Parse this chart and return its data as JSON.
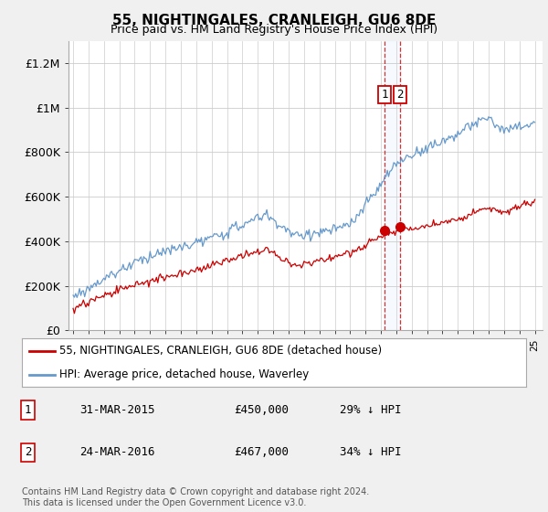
{
  "title": "55, NIGHTINGALES, CRANLEIGH, GU6 8DE",
  "subtitle": "Price paid vs. HM Land Registry's House Price Index (HPI)",
  "ylabel_ticks": [
    "£0",
    "£200K",
    "£400K",
    "£600K",
    "£800K",
    "£1M",
    "£1.2M"
  ],
  "ytick_values": [
    0,
    200000,
    400000,
    600000,
    800000,
    1000000,
    1200000
  ],
  "ylim": [
    0,
    1300000
  ],
  "xlim_start": 1994.7,
  "xlim_end": 2025.5,
  "red_line_color": "#cc0000",
  "blue_line_color": "#6699cc",
  "sale1_x": 2015.25,
  "sale1_y": 450000,
  "sale2_x": 2016.25,
  "sale2_y": 467000,
  "vline_color": "#cc0000",
  "shade_color": "#ddeeff",
  "legend_label_red": "55, NIGHTINGALES, CRANLEIGH, GU6 8DE (detached house)",
  "legend_label_blue": "HPI: Average price, detached house, Waverley",
  "table_row1": [
    "1",
    "31-MAR-2015",
    "£450,000",
    "29% ↓ HPI"
  ],
  "table_row2": [
    "2",
    "24-MAR-2016",
    "£467,000",
    "34% ↓ HPI"
  ],
  "footnote": "Contains HM Land Registry data © Crown copyright and database right 2024.\nThis data is licensed under the Open Government Licence v3.0.",
  "background_color": "#f0f0f0",
  "plot_bg_color": "#ffffff"
}
